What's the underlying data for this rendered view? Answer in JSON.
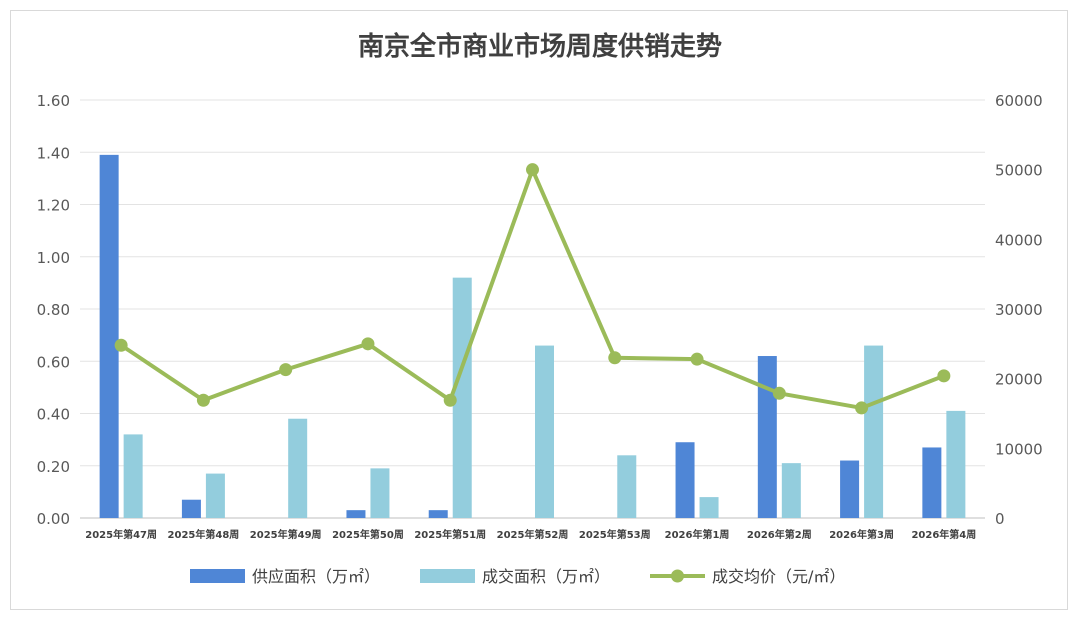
{
  "chart_data": {
    "type": "bar",
    "title": "南京全市商业市场周度供销走势",
    "categories": [
      "2025年第47周",
      "2025年第48周",
      "2025年第49周",
      "2025年第50周",
      "2025年第51周",
      "2025年第52周",
      "2025年第53周",
      "2026年第1周",
      "2026年第2周",
      "2026年第3周",
      "2026年第4周"
    ],
    "series": [
      {
        "name": "供应面积（万㎡）",
        "type": "bar",
        "axis": "left",
        "color": "#4f86d6",
        "values": [
          1.39,
          0.07,
          0,
          0.03,
          0.03,
          0,
          0,
          0.29,
          0.62,
          0.22,
          0.27
        ]
      },
      {
        "name": "成交面积（万㎡）",
        "type": "bar",
        "axis": "left",
        "color": "#93cddd",
        "values": [
          0.32,
          0.17,
          0.38,
          0.19,
          0.92,
          0.66,
          0.24,
          0.08,
          0.21,
          0.66,
          0.41
        ]
      },
      {
        "name": "成交均价（元/㎡）",
        "type": "line",
        "axis": "right",
        "color": "#9bbb59",
        "values": [
          24800,
          16900,
          21300,
          25000,
          16900,
          50000,
          23000,
          22800,
          17900,
          15800,
          20400
        ]
      }
    ],
    "y_left": {
      "ylim": [
        0,
        1.6
      ],
      "ticks": [
        "0.00",
        "0.20",
        "0.40",
        "0.60",
        "0.80",
        "1.00",
        "1.20",
        "1.40",
        "1.60"
      ]
    },
    "y_right": {
      "ylim": [
        0,
        60000
      ],
      "ticks": [
        "0",
        "10000",
        "20000",
        "30000",
        "40000",
        "50000",
        "60000"
      ]
    },
    "grid": true,
    "legend_position": "bottom"
  }
}
